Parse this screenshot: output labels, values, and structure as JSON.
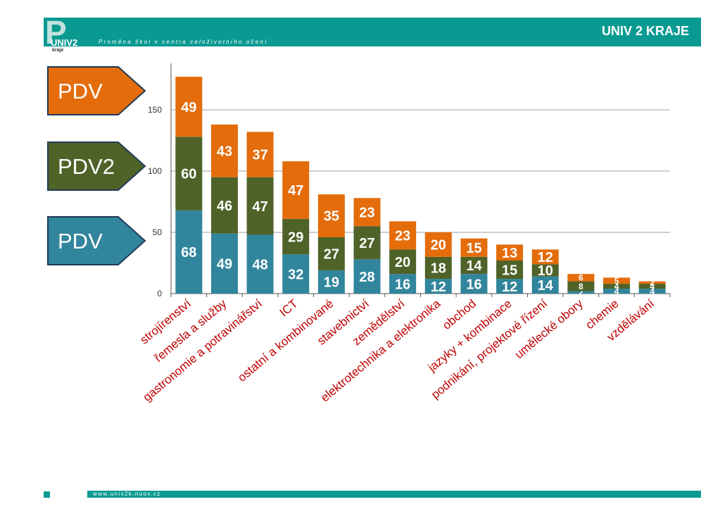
{
  "header": {
    "logo_text": "UNIV2",
    "logo_subtext": "kraje",
    "subtitle": "Proměna škol v centra celoživotního učení",
    "title": "UNIV 2 KRAJE"
  },
  "footer": {
    "url": "www.univ2k.nuov.cz"
  },
  "colors": {
    "header": "#0a9a92",
    "orange": "#e46c0a",
    "green": "#4f6228",
    "blue": "#31859c",
    "category_text": "#c00000"
  },
  "chart_data": {
    "type": "bar",
    "stacked": true,
    "ylim": [
      0,
      180
    ],
    "yticks": [
      0,
      50,
      100,
      150
    ],
    "grid": true,
    "categories": [
      "strojírenství",
      "řemesla a služby",
      "gastronomie a potravinářství",
      "ICT",
      "ostatní a kombinované",
      "stavebnictví",
      "zemědělství",
      "elektrotechnika a elektronika",
      "obchod",
      "jazyky + kombinace",
      "podnikání, projektové řízení",
      "umělecké obory",
      "chemie",
      "vzdělávání"
    ],
    "series": [
      {
        "name": "PDV",
        "color": "#31859c",
        "values": [
          68,
          49,
          48,
          32,
          19,
          28,
          16,
          12,
          16,
          12,
          14,
          2,
          4,
          4
        ]
      },
      {
        "name": "PDV2",
        "color": "#4f6228",
        "values": [
          60,
          46,
          47,
          29,
          27,
          27,
          20,
          18,
          14,
          15,
          10,
          8,
          4,
          4
        ]
      },
      {
        "name": "PDV",
        "color": "#e46c0a",
        "values": [
          49,
          43,
          37,
          47,
          35,
          23,
          23,
          20,
          15,
          13,
          12,
          6,
          5,
          2
        ]
      }
    ],
    "legend": [
      {
        "label": "PDV",
        "color": "#e46c0a"
      },
      {
        "label": "PDV2",
        "color": "#4f6228"
      },
      {
        "label": "PDV",
        "color": "#31859c"
      }
    ]
  }
}
